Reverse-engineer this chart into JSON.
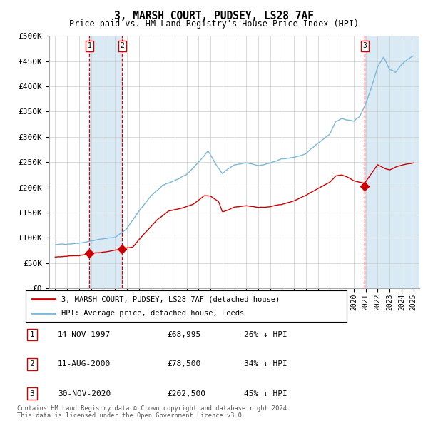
{
  "title": "3, MARSH COURT, PUDSEY, LS28 7AF",
  "subtitle": "Price paid vs. HM Land Registry's House Price Index (HPI)",
  "footer": "Contains HM Land Registry data © Crown copyright and database right 2024.\nThis data is licensed under the Open Government Licence v3.0.",
  "hpi_label": "HPI: Average price, detached house, Leeds",
  "price_label": "3, MARSH COURT, PUDSEY, LS28 7AF (detached house)",
  "transactions": [
    {
      "num": 1,
      "date": "14-NOV-1997",
      "price": 68995,
      "pct": "26%",
      "year_x": 1997.87
    },
    {
      "num": 2,
      "date": "11-AUG-2000",
      "price": 78500,
      "pct": "34%",
      "year_x": 2000.62
    },
    {
      "num": 3,
      "date": "30-NOV-2020",
      "price": 202500,
      "pct": "45%",
      "year_x": 2020.92
    }
  ],
  "ylim": [
    0,
    500000
  ],
  "yticks": [
    0,
    50000,
    100000,
    150000,
    200000,
    250000,
    300000,
    350000,
    400000,
    450000,
    500000
  ],
  "xlim_start": 1994.5,
  "xlim_end": 2025.5,
  "hpi_color": "#7ab8d9",
  "price_color": "#cc0000",
  "shade_color": "#daeaf5",
  "grid_color": "#cccccc",
  "bg_color": "#ffffff",
  "table_rows": [
    [
      "1",
      "14-NOV-1997",
      "£68,995",
      "26% ↓ HPI"
    ],
    [
      "2",
      "11-AUG-2000",
      "£78,500",
      "34% ↓ HPI"
    ],
    [
      "3",
      "30-NOV-2020",
      "£202,500",
      "45% ↓ HPI"
    ]
  ]
}
